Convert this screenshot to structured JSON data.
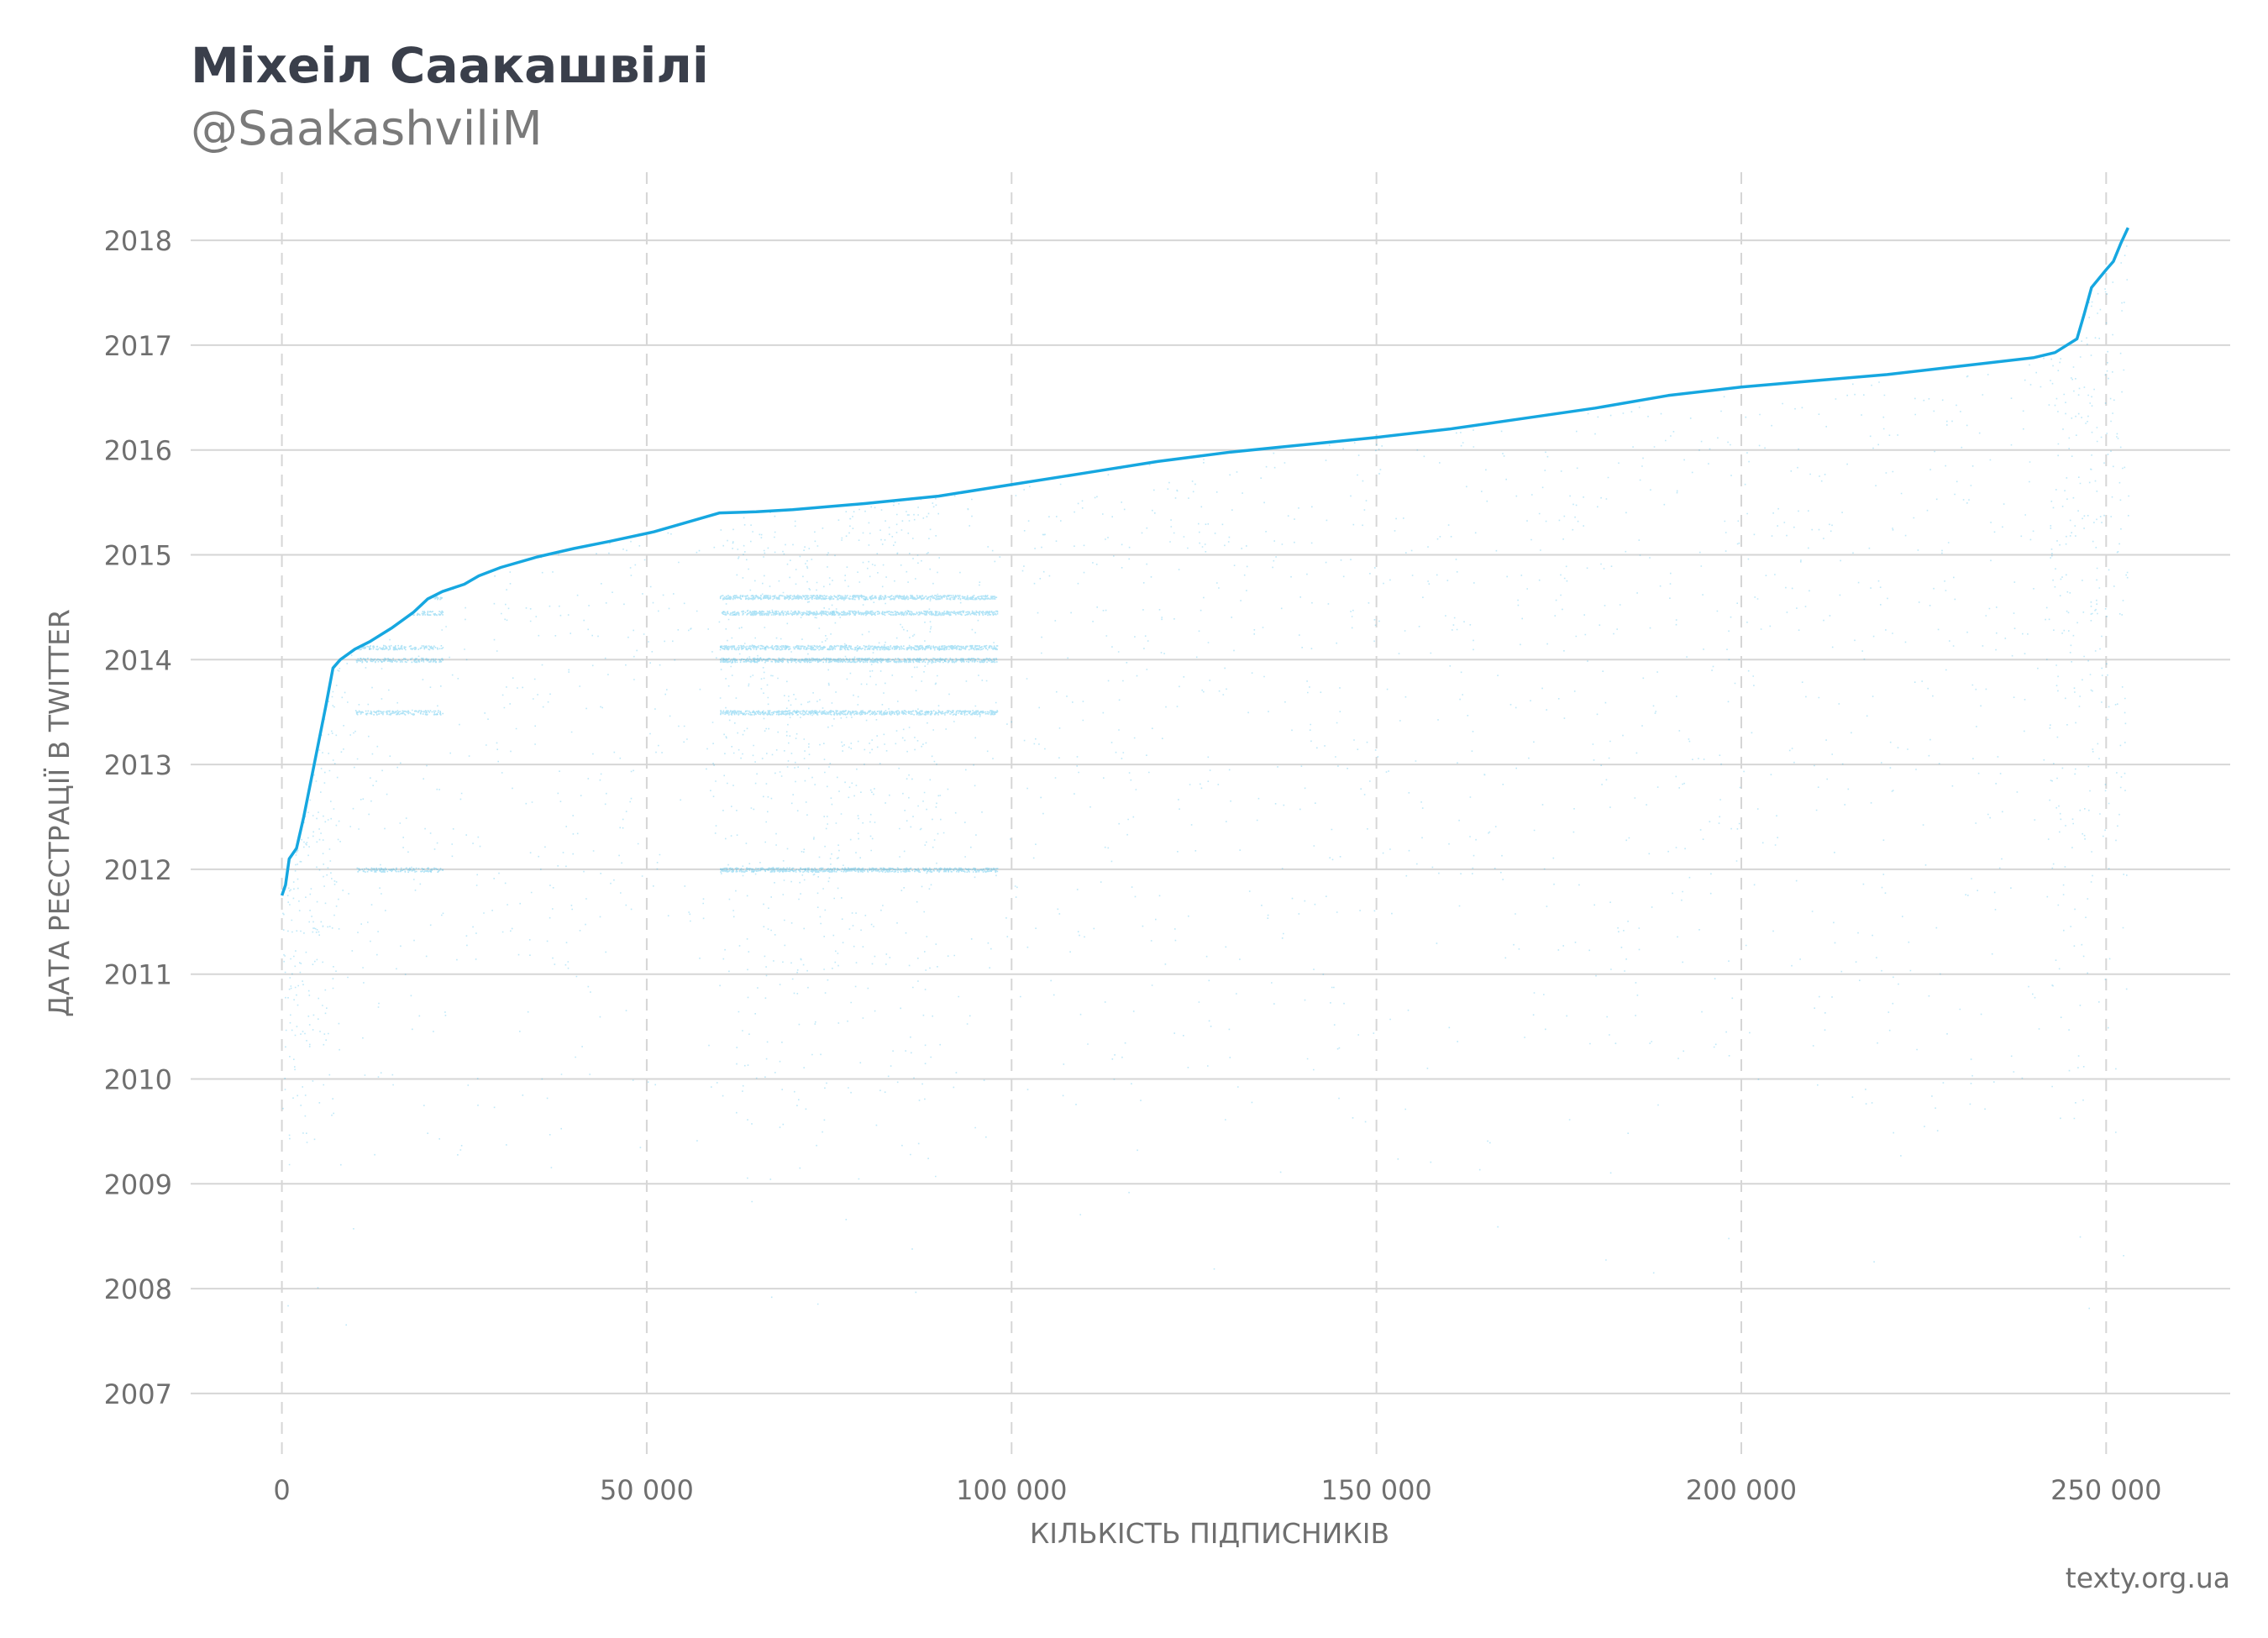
{
  "chart_data": {
    "type": "scatter",
    "title": "Міхеіл Саакашвілі",
    "subtitle": "@SaakashviliM",
    "xlabel": "КІЛЬКІСТЬ ПІДПИСНИКІВ",
    "ylabel": "ДАТА РЕЄСТРАЦІЇ В TWITTER",
    "source": "texty.org.ua",
    "xlim": [
      -12500,
      267000
    ],
    "ylim": [
      2006.35,
      2018.65
    ],
    "x_ticks": [
      0,
      50000,
      100000,
      150000,
      200000,
      250000
    ],
    "x_tick_labels": [
      "0",
      "50 000",
      "100 000",
      "150 000",
      "200 000",
      "250 000"
    ],
    "y_ticks": [
      2007,
      2008,
      2009,
      2010,
      2011,
      2012,
      2013,
      2014,
      2015,
      2016,
      2017,
      2018
    ],
    "y_tick_labels": [
      "2018",
      "2017",
      "2016",
      "2015",
      "2014",
      "2013",
      "2012",
      "2011",
      "2010",
      "2009",
      "2008",
      "2007"
    ],
    "grid": {
      "horizontal": "solid",
      "vertical": "dashed"
    },
    "colors": {
      "points": "#1aaee6",
      "line": "#16a7e0",
      "grid": "#d6d6d6",
      "title": "#3a3f4b"
    },
    "series": [
      {
        "kind": "upper_envelope_line",
        "x": [
          0,
          500,
          1000,
          2000,
          3000,
          4000,
          5000,
          6000,
          7000,
          8000,
          9000,
          10000,
          12000,
          15000,
          18000,
          20000,
          22000,
          25000,
          27000,
          30000,
          35000,
          40000,
          45000,
          51000,
          55000,
          60000,
          65000,
          70000,
          80000,
          90000,
          100000,
          110000,
          120000,
          130000,
          140000,
          150000,
          160000,
          170000,
          180000,
          190000,
          200000,
          210000,
          220000,
          230000,
          240000,
          243000,
          246000,
          247000,
          248000,
          250000,
          251000,
          252000,
          253000
        ],
        "y": [
          2011.75,
          2011.85,
          2012.1,
          2012.2,
          2012.5,
          2012.85,
          2013.2,
          2013.55,
          2013.92,
          2014.0,
          2014.05,
          2014.1,
          2014.17,
          2014.3,
          2014.45,
          2014.58,
          2014.65,
          2014.72,
          2014.8,
          2014.88,
          2014.98,
          2015.06,
          2015.13,
          2015.22,
          2015.3,
          2015.4,
          2015.41,
          2015.43,
          2015.49,
          2015.56,
          2015.67,
          2015.78,
          2015.89,
          2015.98,
          2016.05,
          2016.12,
          2016.2,
          2016.3,
          2016.4,
          2016.52,
          2016.6,
          2016.66,
          2016.72,
          2016.8,
          2016.88,
          2016.93,
          2017.06,
          2017.3,
          2017.55,
          2017.72,
          2017.8,
          2017.97,
          2018.12
        ]
      }
    ],
    "point_density_note_free": {
      "x_range": [
        0,
        253000
      ],
      "y_min": 2006.9
    }
  }
}
